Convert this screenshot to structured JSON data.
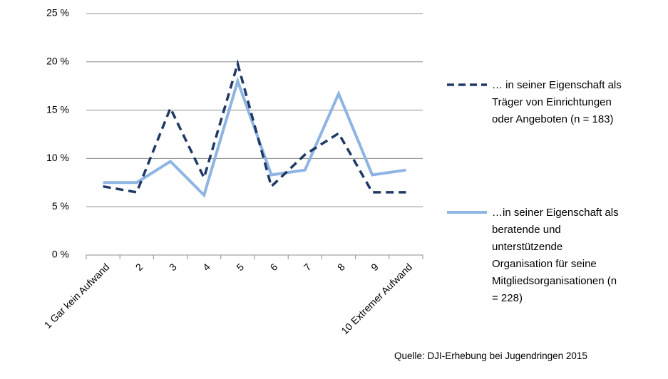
{
  "chart_data": {
    "type": "line",
    "categories": [
      "1 Gar kein Aufwand",
      "2",
      "3",
      "4",
      "5",
      "6",
      "7",
      "8",
      "9",
      "10 Extremer Aufwand"
    ],
    "y_ticks": [
      "0 %",
      "5 %",
      "10 %",
      "15 %",
      "20 %",
      "25 %"
    ],
    "ylim": [
      0,
      25
    ],
    "grid": true,
    "legend_position": "right",
    "series": [
      {
        "name": "… in seiner Eigenschaft als Träger von Einrichtungen oder Angeboten (n = 183)",
        "legend_lines": [
          "… in seiner Eigenschaft als",
          "Träger von Einrichtungen",
          "oder Angeboten (n = 183)"
        ],
        "style": "dashed",
        "color": "#1F3864",
        "values": [
          7.1,
          6.5,
          15.2,
          8.0,
          19.8,
          7.1,
          10.4,
          12.6,
          6.5,
          6.5
        ]
      },
      {
        "name": "…in seiner Eigenschaft als beratende und unterstützende Organisation für seine Mitgliedsorganisationen (n = 228)",
        "legend_lines": [
          "…in seiner Eigenschaft als",
          "beratende und",
          "unterstützende",
          "Organisation für seine",
          "Mitgliedsorganisationen (n",
          "= 228)"
        ],
        "style": "solid",
        "color": "#8EB4E3",
        "values": [
          7.5,
          7.5,
          9.7,
          6.2,
          18.0,
          8.3,
          8.8,
          16.7,
          8.3,
          8.8
        ]
      }
    ]
  },
  "source": "Quelle: DJI-Erhebung bei Jugendringen 2015",
  "colors": {
    "grid": "#8c8c8c",
    "axis": "#8c8c8c"
  }
}
